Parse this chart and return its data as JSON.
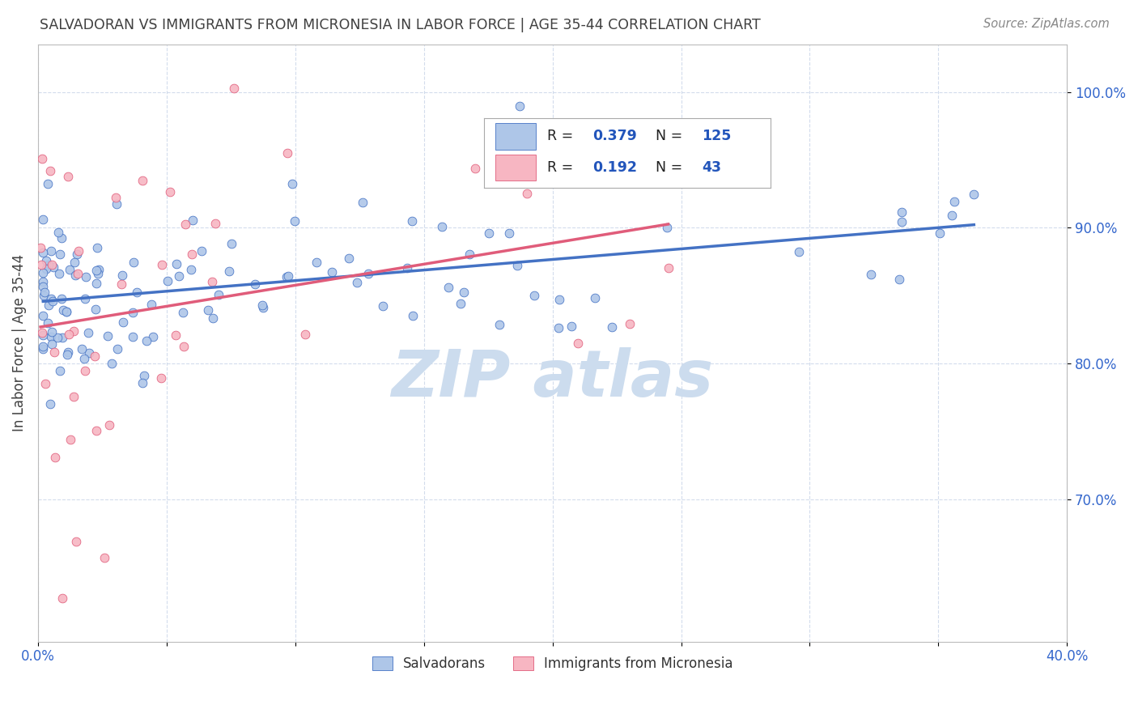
{
  "title": "SALVADORAN VS IMMIGRANTS FROM MICRONESIA IN LABOR FORCE | AGE 35-44 CORRELATION CHART",
  "source": "Source: ZipAtlas.com",
  "ylabel": "In Labor Force | Age 35-44",
  "y_ticks": [
    0.7,
    0.8,
    0.9,
    1.0
  ],
  "y_tick_labels": [
    "70.0%",
    "80.0%",
    "90.0%",
    "100.0%"
  ],
  "x_range": [
    0.0,
    0.4
  ],
  "y_range": [
    0.595,
    1.035
  ],
  "blue_R": 0.379,
  "blue_N": 125,
  "pink_R": 0.192,
  "pink_N": 43,
  "blue_color": "#aec6e8",
  "pink_color": "#f7b6c2",
  "blue_line_color": "#4472c4",
  "pink_line_color": "#e05c7a",
  "legend_R_color": "#2255bb",
  "watermark_color": "#ccdcee",
  "title_color": "#404040",
  "axis_label_color": "#3366cc",
  "blue_seed": 42,
  "pink_seed": 7
}
